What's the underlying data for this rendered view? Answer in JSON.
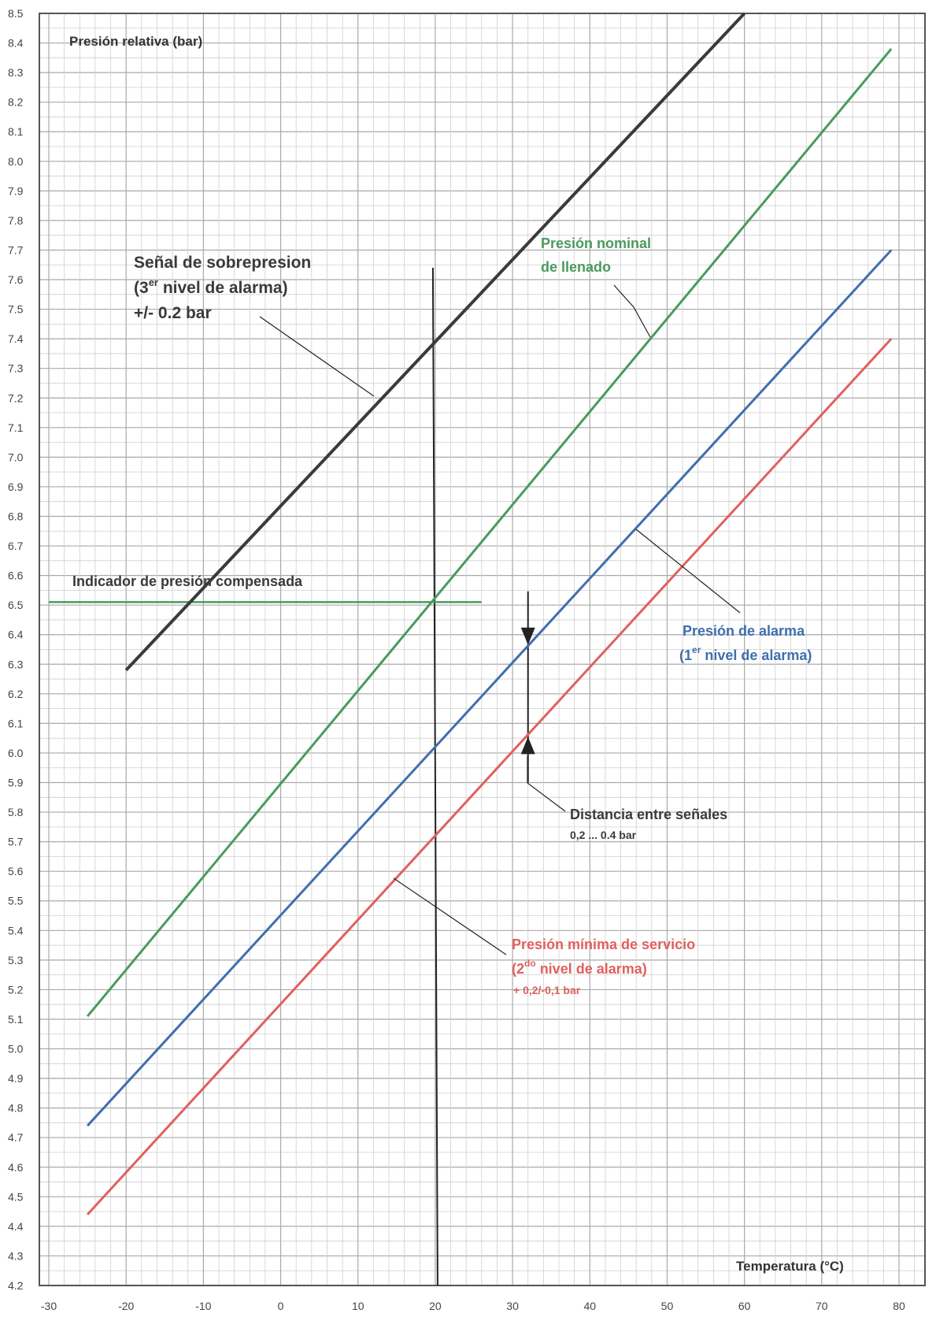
{
  "chart_data": {
    "type": "line",
    "ylabel": "Presión relativa (bar)",
    "xlabel": "Temperatura (°C)",
    "xlim": [
      -30,
      80
    ],
    "ylim": [
      4.2,
      8.5
    ],
    "x_ticks": [
      "-30",
      "-20",
      "-10",
      "0",
      "10",
      "20",
      "30",
      "40",
      "50",
      "60",
      "70",
      "80"
    ],
    "x_tick_values": [
      -30,
      -20,
      -10,
      0,
      10,
      20,
      30,
      40,
      50,
      60,
      70,
      80
    ],
    "y_ticks": [
      "4.2",
      "4.3",
      "4.4",
      "4.5",
      "4.6",
      "4.7",
      "4.8",
      "4.9",
      "5.0",
      "5.1",
      "5.2",
      "5.3",
      "5.4",
      "5.5",
      "5.6",
      "5.7",
      "5.8",
      "5.9",
      "6.0",
      "6.1",
      "6.2",
      "6.3",
      "6.4",
      "6.5",
      "6.6",
      "6.7",
      "6.8",
      "6.9",
      "7.0",
      "7.1",
      "7.2",
      "7.3",
      "7.4",
      "7.5",
      "7.6",
      "7.7",
      "7.8",
      "7.9",
      "8.0",
      "8.1",
      "8.2",
      "8.3",
      "8.4",
      "8.5"
    ],
    "grid": true,
    "series": [
      {
        "key": "overpressure",
        "color": "#3a3a3a",
        "x": [
          -20,
          60
        ],
        "y": [
          6.28,
          8.5
        ]
      },
      {
        "key": "nominal",
        "color": "#4a9a5e",
        "x": [
          -25,
          79
        ],
        "y": [
          5.11,
          8.38
        ]
      },
      {
        "key": "alarm",
        "color": "#3f6fad",
        "x": [
          -25,
          79
        ],
        "y": [
          4.74,
          7.7
        ]
      },
      {
        "key": "minimum",
        "color": "#e0605e",
        "x": [
          -25,
          79
        ],
        "y": [
          4.44,
          7.4
        ]
      }
    ],
    "reference_lines": {
      "vertical_x": 20,
      "vertical_y_range": [
        4.2,
        7.64
      ],
      "horizontal_y": 6.51,
      "horizontal_x_range": [
        -30,
        26
      ],
      "horizontal_color": "#4a9a5e",
      "signal_gap_x": 32,
      "signal_gap_y": [
        6.06,
        6.36
      ]
    },
    "annotations": {
      "overpressure": {
        "line1": "Señal de sobrepresion",
        "line2_prefix": "(3",
        "line2_sup": "er",
        "line2_suffix": " nivel de alarma)",
        "line3": "+/- 0.2 bar",
        "color": "#3a3a3a"
      },
      "nominal": {
        "line1": "Presión nominal",
        "line2": "de llenado",
        "color": "#4a9a5e"
      },
      "compensated": {
        "text": "Indicador de presión compensada",
        "color": "#3a3a3a"
      },
      "alarm": {
        "line1": "Presión de alarma",
        "line2_prefix": "(1",
        "line2_sup": "er",
        "line2_suffix": " nivel de alarma)",
        "color": "#3f6fad"
      },
      "distance": {
        "line1": "Distancia entre señales",
        "line2": "0,2 ... 0.4 bar",
        "color": "#3a3a3a"
      },
      "minimum": {
        "line1": "Presión mínima de servicio",
        "line2_prefix": "(2",
        "line2_sup": "do",
        "line2_suffix": " nivel de alarma)",
        "line3": "+ 0,2/-0,1 bar",
        "color": "#e0605e"
      }
    }
  }
}
